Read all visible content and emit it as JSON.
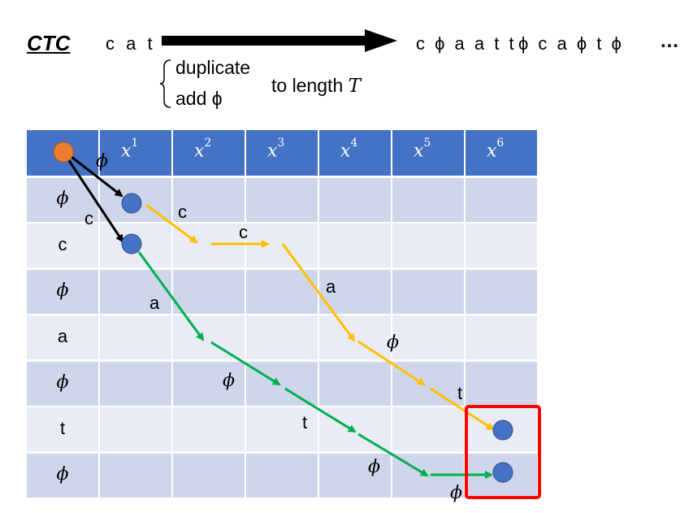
{
  "header": {
    "title": "CTC",
    "input": "c a t",
    "output_1": "c ϕ a a t t",
    "output_2": "ϕ c a ϕ t ϕ",
    "ellipsis": "…",
    "rule_1": "duplicate",
    "rule_2": "add ϕ",
    "target": "to length",
    "target_var": "T"
  },
  "table": {
    "columns": [
      "x",
      "x",
      "x",
      "x",
      "x",
      "x"
    ],
    "superscripts": [
      "1",
      "2",
      "3",
      "4",
      "5",
      "6"
    ],
    "rows": [
      "ϕ",
      "c",
      "ϕ",
      "a",
      "ϕ",
      "t",
      "ϕ"
    ]
  },
  "edge_labels": {
    "black_1": "ϕ",
    "black_2": "c",
    "yellow_1": "c",
    "yellow_2": "c",
    "yellow_3": "a",
    "yellow_4": "ϕ",
    "yellow_5": "t",
    "green_1": "a",
    "green_2": "ϕ",
    "green_3": "t",
    "green_4": "ϕ",
    "green_5": "ϕ"
  },
  "colors": {
    "header": "#4472c4",
    "row_dark": "#cfd5ea",
    "row_light": "#e9ebf5",
    "start_node": "#ed7d31",
    "node": "#4472c4",
    "path_yellow": "#ffc000",
    "path_green": "#00b050",
    "highlight": "#ff0000"
  }
}
